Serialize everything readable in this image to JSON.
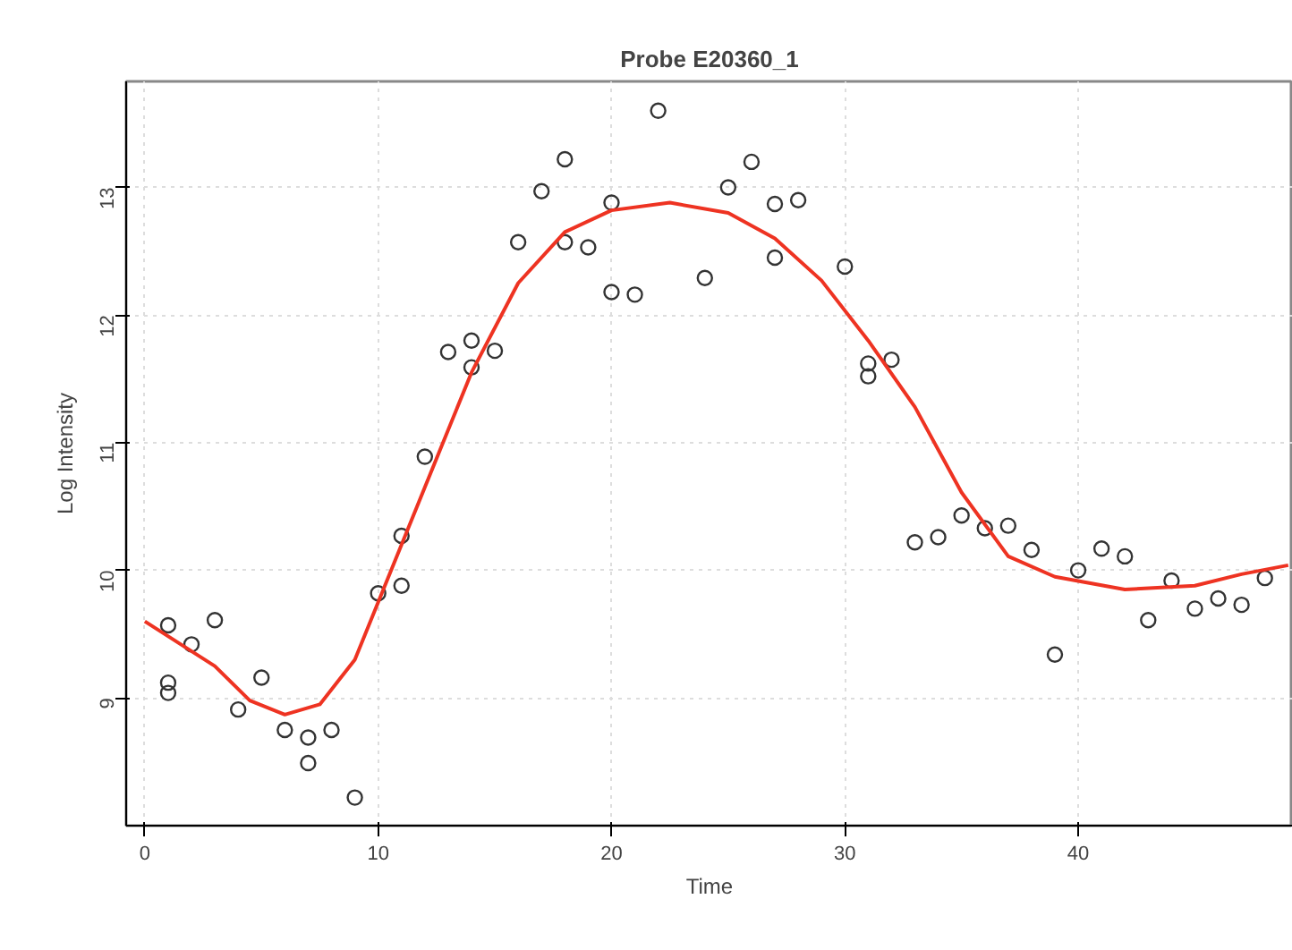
{
  "chart_data": {
    "type": "scatter",
    "title": "Probe E20360_1",
    "xlabel": "Time",
    "ylabel": "Log Intensity",
    "xlim": [
      -0.8,
      49.2
    ],
    "ylim": [
      8.0,
      13.83
    ],
    "xticks": [
      0,
      10,
      20,
      30,
      40
    ],
    "yticks": [
      9,
      10,
      11,
      12,
      13
    ],
    "grid": true,
    "series": [
      {
        "color": "#333333",
        "marker": "circle",
        "x": [
          1,
          1,
          1,
          2,
          3,
          4,
          5,
          6,
          7,
          7,
          8,
          9,
          10,
          11,
          11,
          12,
          13,
          14,
          14,
          15,
          16,
          17,
          18,
          18,
          19,
          20,
          20,
          21,
          22,
          24,
          25,
          26,
          27,
          27,
          28,
          30,
          31,
          31,
          32,
          33,
          34,
          35,
          36,
          37,
          38,
          39,
          40,
          41,
          42,
          43,
          44,
          45,
          46,
          47,
          48
        ],
        "values": [
          9.12,
          9.04,
          9.57,
          9.42,
          9.61,
          8.91,
          9.16,
          8.75,
          8.49,
          8.69,
          8.75,
          8.22,
          9.82,
          9.88,
          10.27,
          10.89,
          11.71,
          11.8,
          11.59,
          11.72,
          12.57,
          12.97,
          13.22,
          12.57,
          12.53,
          12.88,
          12.18,
          12.16,
          13.6,
          12.29,
          13.0,
          13.2,
          12.87,
          12.45,
          12.9,
          12.38,
          11.62,
          11.52,
          11.65,
          10.22,
          10.26,
          10.43,
          10.33,
          10.35,
          10.16,
          9.34,
          10.0,
          10.17,
          10.11,
          9.61,
          9.92,
          9.7,
          9.78,
          9.73,
          9.94
        ]
      },
      {
        "type": "line",
        "color": "#ee3322",
        "marker": "none",
        "line_style": "solid",
        "x": [
          0,
          3,
          4.5,
          6,
          7.5,
          9,
          10,
          12,
          14,
          16,
          18,
          20,
          22.5,
          25,
          27,
          29,
          31,
          33,
          35,
          37,
          39,
          42,
          45,
          47,
          49
        ],
        "values": [
          9.6,
          9.25,
          8.98,
          8.87,
          8.95,
          9.3,
          9.75,
          10.65,
          11.55,
          12.25,
          12.65,
          12.82,
          12.88,
          12.8,
          12.6,
          12.27,
          11.8,
          11.28,
          10.61,
          10.11,
          9.95,
          9.85,
          9.88,
          9.97,
          10.04
        ]
      }
    ]
  }
}
